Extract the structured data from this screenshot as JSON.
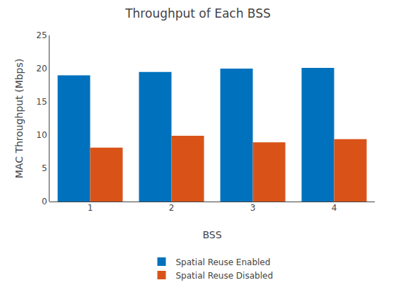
{
  "chart_data": {
    "type": "bar",
    "title": "Throughput of Each BSS",
    "xlabel": "BSS",
    "ylabel": "MAC Throughput (Mbps)",
    "categories": [
      "1",
      "2",
      "3",
      "4"
    ],
    "series": [
      {
        "name": "Spatial Reuse Enabled",
        "color": "#0072BD",
        "values": [
          19.0,
          19.5,
          20.0,
          20.1
        ]
      },
      {
        "name": "Spatial Reuse Disabled",
        "color": "#D95319",
        "values": [
          8.1,
          9.9,
          8.9,
          9.4
        ]
      }
    ],
    "ylim": [
      0,
      25
    ],
    "yticks": [
      0,
      5,
      10,
      15,
      20,
      25
    ],
    "grid": false,
    "legend": "bottom"
  }
}
